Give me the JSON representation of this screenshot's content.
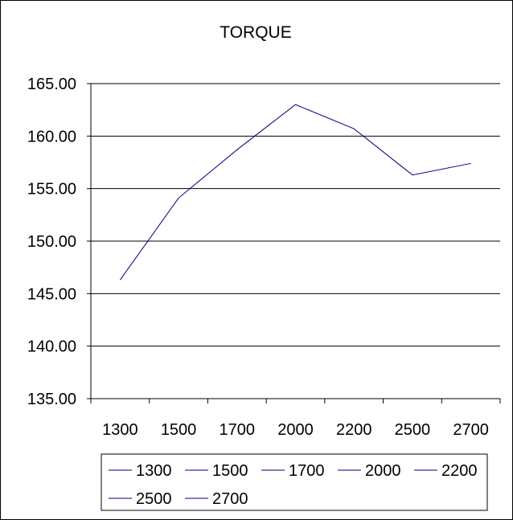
{
  "chart_data": {
    "type": "line",
    "title": "TORQUE",
    "xlabel": "",
    "ylabel": "",
    "categories": [
      "1300",
      "1500",
      "1700",
      "2000",
      "2200",
      "2500",
      "2700"
    ],
    "values": [
      146.3,
      154.1,
      158.7,
      163.0,
      160.7,
      156.3,
      157.4
    ],
    "ylim": [
      135,
      165
    ],
    "yticks": [
      "135.00",
      "140.00",
      "145.00",
      "150.00",
      "155.00",
      "160.00",
      "165.00"
    ],
    "grid": "horizontal",
    "line_color": "#000080",
    "legend_position": "bottom",
    "legend": [
      "1300",
      "1500",
      "1700",
      "2000",
      "2200",
      "2500",
      "2700"
    ]
  }
}
